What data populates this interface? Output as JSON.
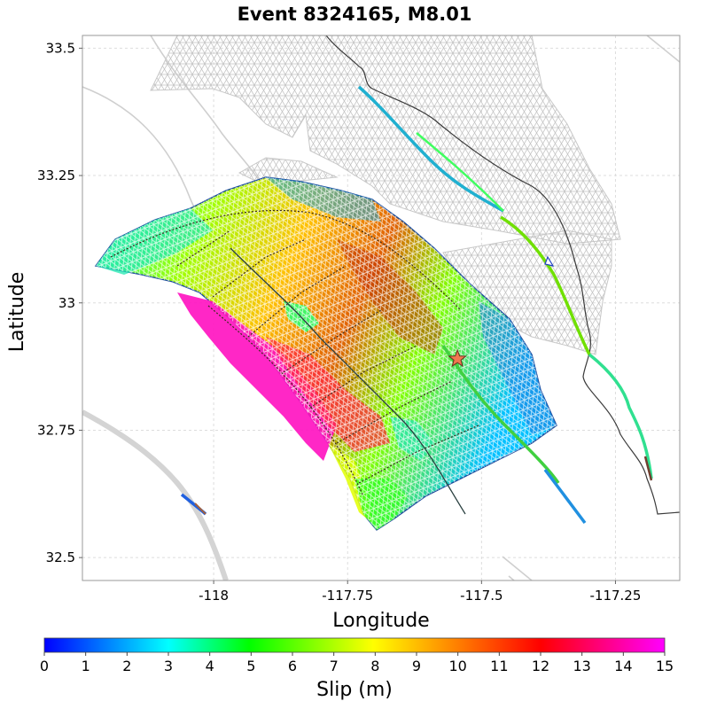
{
  "title": "Event 8324165, M8.01",
  "map": {
    "xlabel": "Longitude",
    "ylabel": "Latitude",
    "xlim": [
      -118.245,
      -117.13
    ],
    "ylim": [
      32.455,
      33.525
    ],
    "xticks": [
      {
        "v": -118,
        "label": "-118"
      },
      {
        "v": -117.75,
        "label": "-117.75"
      },
      {
        "v": -117.5,
        "label": "-117.5"
      },
      {
        "v": -117.25,
        "label": "-117.25"
      }
    ],
    "yticks": [
      {
        "v": 32.5,
        "label": "32.5"
      },
      {
        "v": 32.75,
        "label": "32.75"
      },
      {
        "v": 33,
        "label": "33"
      },
      {
        "v": 33.25,
        "label": "33.25"
      },
      {
        "v": 33.5,
        "label": "33.5"
      }
    ],
    "grid": true,
    "hypocenter": {
      "lon": -117.545,
      "lat": 32.89,
      "color": "#f07850"
    },
    "coastline_color": "#333333",
    "background_fault_color": "#c8c8c8"
  },
  "colorbar": {
    "label": "Slip (m)",
    "range": [
      0,
      15
    ],
    "ticks": [
      "0",
      "1",
      "2",
      "3",
      "4",
      "5",
      "6",
      "7",
      "8",
      "9",
      "10",
      "11",
      "12",
      "13",
      "14",
      "15"
    ],
    "stops": [
      "#0000ff",
      "#00ffff",
      "#00ff00",
      "#ffff00",
      "#ff0000",
      "#ff00ff"
    ]
  }
}
